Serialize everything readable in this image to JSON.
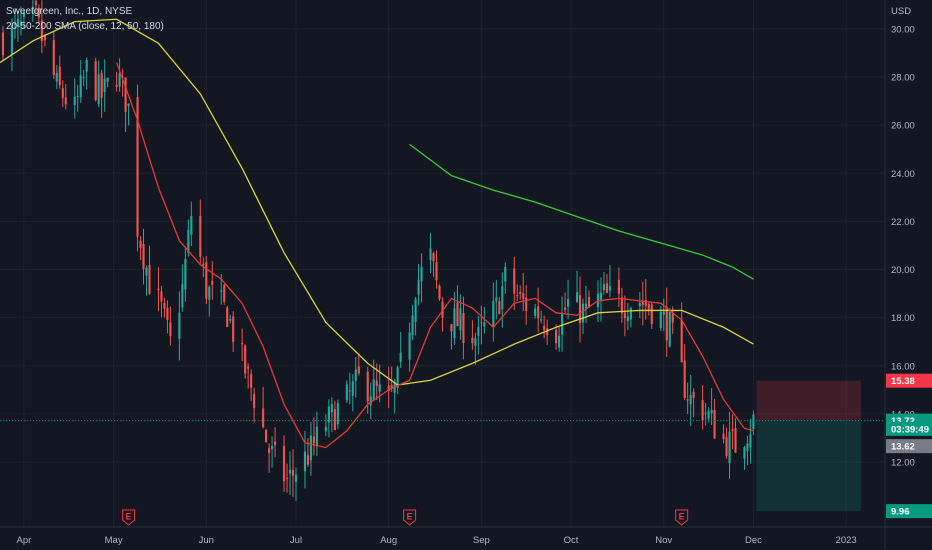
{
  "legend": {
    "symbol": "Sweetgreen, Inc., 1D, NYSE",
    "indicator": "20-50-200 SMA (close, 12, 50, 180)"
  },
  "colors": {
    "background": "#131722",
    "up": "#26a69a",
    "down": "#ef5350",
    "sma12": "#e53935",
    "sma50": "#d4d13b",
    "sma180": "#36c936",
    "grid": "#1e222d"
  },
  "chart_data": {
    "type": "candlestick",
    "currency": "USD",
    "y_ticks": [
      12,
      14,
      16,
      18,
      20,
      22,
      24,
      26,
      28,
      30
    ],
    "y_tick_labels": [
      "12.00",
      "14.00",
      "16.00",
      "18.00",
      "20.00",
      "22.00",
      "24.00",
      "26.00",
      "28.00",
      "30.00"
    ],
    "ylim": [
      9.3,
      31.2
    ],
    "x_range": [
      "2022-03-24",
      "2023-01-14"
    ],
    "x_ticks": [
      {
        "date": "2022-04-01",
        "label": "Apr"
      },
      {
        "date": "2022-05-01",
        "label": "May"
      },
      {
        "date": "2022-06-01",
        "label": "Jun"
      },
      {
        "date": "2022-07-01",
        "label": "Jul"
      },
      {
        "date": "2022-08-01",
        "label": "Aug"
      },
      {
        "date": "2022-09-01",
        "label": "Sep"
      },
      {
        "date": "2022-10-01",
        "label": "Oct"
      },
      {
        "date": "2022-11-01",
        "label": "Nov"
      },
      {
        "date": "2022-12-01",
        "label": "Dec"
      },
      {
        "date": "2023-01-01",
        "label": "2023"
      }
    ],
    "close_path": [
      [
        "2022-03-25",
        29.6
      ],
      [
        "2022-04-05",
        30.4
      ],
      [
        "2022-04-08",
        29.2
      ],
      [
        "2022-04-12",
        27.6
      ],
      [
        "2022-04-18",
        26.6
      ],
      [
        "2022-04-22",
        28.3
      ],
      [
        "2022-04-27",
        27.2
      ],
      [
        "2022-05-02",
        28.2
      ],
      [
        "2022-05-06",
        26.7
      ],
      [
        "2022-05-09",
        21.8
      ],
      [
        "2022-05-13",
        19.5
      ],
      [
        "2022-05-17",
        18.3
      ],
      [
        "2022-05-20",
        16.9
      ],
      [
        "2022-05-24",
        19.2
      ],
      [
        "2022-05-27",
        22.3
      ],
      [
        "2022-06-01",
        19.2
      ],
      [
        "2022-06-08",
        18.2
      ],
      [
        "2022-06-13",
        16.2
      ],
      [
        "2022-06-17",
        14.7
      ],
      [
        "2022-06-22",
        12.5
      ],
      [
        "2022-06-28",
        11.2
      ],
      [
        "2022-07-05",
        12.3
      ],
      [
        "2022-07-11",
        13.6
      ],
      [
        "2022-07-18",
        14.6
      ],
      [
        "2022-07-22",
        15.4
      ],
      [
        "2022-07-27",
        15.0
      ],
      [
        "2022-08-01",
        14.5
      ],
      [
        "2022-08-04",
        15.3
      ],
      [
        "2022-08-08",
        17.8
      ],
      [
        "2022-08-10",
        19.4
      ],
      [
        "2022-08-15",
        20.5
      ],
      [
        "2022-08-19",
        18.2
      ],
      [
        "2022-08-25",
        17.7
      ],
      [
        "2022-08-31",
        17.1
      ],
      [
        "2022-09-06",
        18.4
      ],
      [
        "2022-09-09",
        19.6
      ],
      [
        "2022-09-14",
        18.7
      ],
      [
        "2022-09-20",
        18.2
      ],
      [
        "2022-09-26",
        17.5
      ],
      [
        "2022-09-30",
        18.6
      ],
      [
        "2022-10-06",
        18.2
      ],
      [
        "2022-10-12",
        18.9
      ],
      [
        "2022-10-18",
        18.6
      ],
      [
        "2022-10-24",
        18.7
      ],
      [
        "2022-10-28",
        18.4
      ],
      [
        "2022-11-03",
        17.6
      ],
      [
        "2022-11-08",
        15.2
      ],
      [
        "2022-11-10",
        14.6
      ],
      [
        "2022-11-15",
        14.1
      ],
      [
        "2022-11-21",
        12.9
      ],
      [
        "2022-11-25",
        12.7
      ],
      [
        "2022-11-29",
        13.3
      ],
      [
        "2022-12-01",
        13.72
      ]
    ],
    "sma12": [
      [
        "2022-05-02",
        28.6
      ],
      [
        "2022-05-09",
        26.2
      ],
      [
        "2022-05-16",
        23.4
      ],
      [
        "2022-05-23",
        21.2
      ],
      [
        "2022-05-30",
        20.2
      ],
      [
        "2022-06-06",
        19.6
      ],
      [
        "2022-06-13",
        18.6
      ],
      [
        "2022-06-20",
        16.8
      ],
      [
        "2022-06-27",
        14.4
      ],
      [
        "2022-07-04",
        12.8
      ],
      [
        "2022-07-11",
        12.6
      ],
      [
        "2022-07-18",
        13.3
      ],
      [
        "2022-07-25",
        14.4
      ],
      [
        "2022-08-01",
        15.0
      ],
      [
        "2022-08-08",
        15.4
      ],
      [
        "2022-08-15",
        17.6
      ],
      [
        "2022-08-22",
        18.8
      ],
      [
        "2022-08-29",
        18.4
      ],
      [
        "2022-09-05",
        17.6
      ],
      [
        "2022-09-12",
        18.6
      ],
      [
        "2022-09-19",
        18.8
      ],
      [
        "2022-09-26",
        18.2
      ],
      [
        "2022-10-03",
        18.1
      ],
      [
        "2022-10-10",
        18.7
      ],
      [
        "2022-10-17",
        18.8
      ],
      [
        "2022-10-24",
        18.7
      ],
      [
        "2022-10-31",
        18.6
      ],
      [
        "2022-11-07",
        17.9
      ],
      [
        "2022-11-14",
        16.4
      ],
      [
        "2022-11-21",
        14.6
      ],
      [
        "2022-11-28",
        13.4
      ],
      [
        "2022-12-01",
        13.3
      ]
    ],
    "sma50": [
      [
        "2022-03-24",
        28.6
      ],
      [
        "2022-04-04",
        29.5
      ],
      [
        "2022-04-18",
        30.3
      ],
      [
        "2022-05-02",
        30.4
      ],
      [
        "2022-05-16",
        29.4
      ],
      [
        "2022-05-30",
        27.3
      ],
      [
        "2022-06-13",
        24.2
      ],
      [
        "2022-06-27",
        20.7
      ],
      [
        "2022-07-11",
        17.8
      ],
      [
        "2022-07-25",
        16.1
      ],
      [
        "2022-08-04",
        15.2
      ],
      [
        "2022-08-15",
        15.4
      ],
      [
        "2022-08-29",
        16.1
      ],
      [
        "2022-09-12",
        16.9
      ],
      [
        "2022-09-26",
        17.6
      ],
      [
        "2022-10-10",
        18.2
      ],
      [
        "2022-10-24",
        18.3
      ],
      [
        "2022-11-07",
        18.3
      ],
      [
        "2022-11-21",
        17.6
      ],
      [
        "2022-12-01",
        16.9
      ]
    ],
    "sma180": [
      [
        "2022-08-08",
        25.2
      ],
      [
        "2022-08-22",
        23.9
      ],
      [
        "2022-09-05",
        23.3
      ],
      [
        "2022-09-19",
        22.8
      ],
      [
        "2022-10-03",
        22.2
      ],
      [
        "2022-10-17",
        21.6
      ],
      [
        "2022-10-31",
        21.1
      ],
      [
        "2022-11-14",
        20.6
      ],
      [
        "2022-11-24",
        20.1
      ],
      [
        "2022-12-01",
        19.6
      ]
    ],
    "last_price": 13.72,
    "price_badges": [
      {
        "label": "15.38",
        "value": 15.38,
        "color": "#f23645"
      },
      {
        "label": "13.72",
        "value": 13.72,
        "color": "#089981"
      },
      {
        "label": "03:39:49",
        "value": 13.38,
        "color": "#089981"
      },
      {
        "label": "13.62",
        "value": 12.66,
        "color": "#787b86"
      },
      {
        "label": "9.96",
        "value": 9.96,
        "color": "#089981"
      }
    ],
    "position": {
      "entry": 13.72,
      "stop": 15.38,
      "target": 9.96,
      "start": "2022-12-02",
      "end": "2023-01-06"
    },
    "earnings_markers": [
      {
        "date": "2022-05-06",
        "label": "E"
      },
      {
        "date": "2022-08-08",
        "label": "E"
      },
      {
        "date": "2022-11-07",
        "label": "E"
      }
    ]
  }
}
